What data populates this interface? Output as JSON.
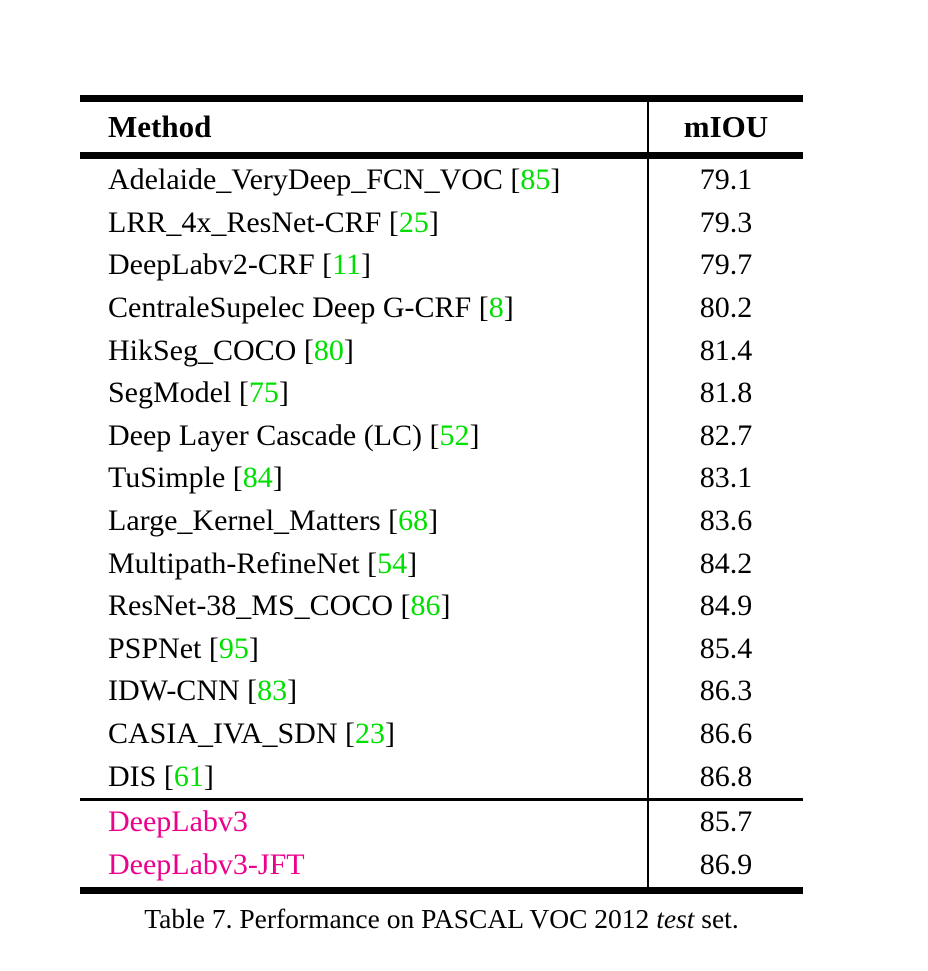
{
  "table": {
    "header": {
      "method": "Method",
      "metric": "mIOU"
    },
    "citation_brackets": {
      "open": "[",
      "close": "]"
    },
    "rows": [
      {
        "method": "Adelaide_VeryDeep_FCN_VOC",
        "cite": "85",
        "miou": "79.1"
      },
      {
        "method": "LRR_4x_ResNet-CRF",
        "cite": "25",
        "miou": "79.3"
      },
      {
        "method": "DeepLabv2-CRF",
        "cite": "11",
        "miou": "79.7"
      },
      {
        "method": "CentraleSupelec Deep G-CRF",
        "cite": "8",
        "miou": "80.2"
      },
      {
        "method": "HikSeg_COCO",
        "cite": "80",
        "miou": "81.4"
      },
      {
        "method": "SegModel",
        "cite": "75",
        "miou": "81.8"
      },
      {
        "method": "Deep Layer Cascade (LC)",
        "cite": "52",
        "miou": "82.7"
      },
      {
        "method": "TuSimple",
        "cite": "84",
        "miou": "83.1"
      },
      {
        "method": "Large_Kernel_Matters",
        "cite": "68",
        "miou": "83.6"
      },
      {
        "method": "Multipath-RefineNet",
        "cite": "54",
        "miou": "84.2"
      },
      {
        "method": "ResNet-38_MS_COCO",
        "cite": "86",
        "miou": "84.9"
      },
      {
        "method": "PSPNet",
        "cite": "95",
        "miou": "85.4"
      },
      {
        "method": "IDW-CNN",
        "cite": "83",
        "miou": "86.3"
      },
      {
        "method": "CASIA_IVA_SDN",
        "cite": "23",
        "miou": "86.6"
      },
      {
        "method": "DIS",
        "cite": "61",
        "miou": "86.8"
      }
    ],
    "highlight_rows": [
      {
        "method": "DeepLabv3",
        "miou": "85.7"
      },
      {
        "method": "DeepLabv3-JFT",
        "miou": "86.9"
      }
    ]
  },
  "caption": {
    "prefix": "Table 7. Performance on PASCAL VOC 2012 ",
    "emphasis": "test",
    "suffix": " set."
  },
  "colors": {
    "citation_green": "#00e000",
    "highlight_magenta": "#ec008c",
    "rule_black": "#000000"
  }
}
